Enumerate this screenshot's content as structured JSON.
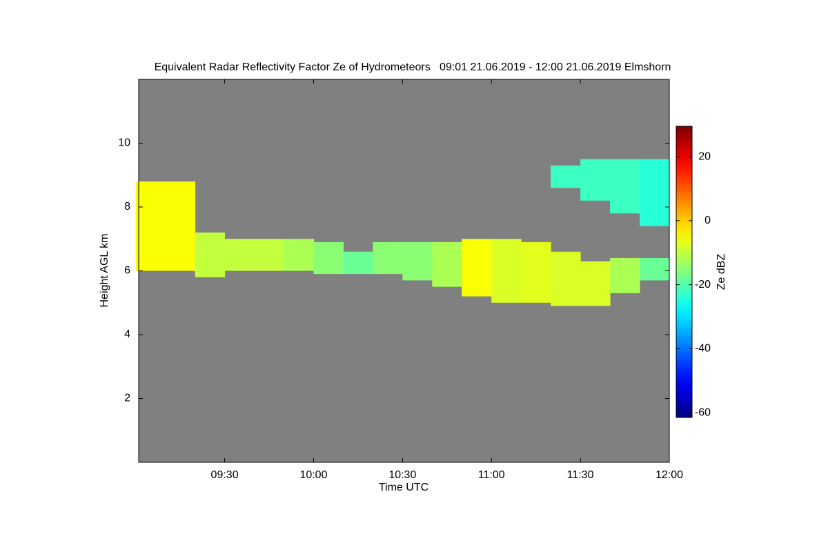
{
  "chart_data": {
    "type": "heatmap",
    "title": "Equivalent Radar Reflectivity Factor Ze of Hydrometeors   09:01 21.06.2019 - 12:00 21.06.2019 Elmshorn",
    "x_label": "Time UTC",
    "y_label": "Height AGL km",
    "colorbar_label": "Ze dBZ",
    "colormap": "jet",
    "background": "#808080",
    "xlim": [
      9.0167,
      12.0
    ],
    "xticks": [
      {
        "value": 9.5,
        "label": "09:30"
      },
      {
        "value": 10.0,
        "label": "10:00"
      },
      {
        "value": 10.5,
        "label": "10:30"
      },
      {
        "value": 11.0,
        "label": "11:00"
      },
      {
        "value": 11.5,
        "label": "11:30"
      },
      {
        "value": 12.0,
        "label": "12:00"
      }
    ],
    "ylim": [
      0,
      12
    ],
    "yticks": [
      2,
      4,
      6,
      8,
      10
    ],
    "clim": [
      -61.5,
      29.5
    ],
    "cticks": [
      20,
      0,
      -20,
      -40,
      -60
    ],
    "layers": [
      {
        "x": [
          9.0833,
          9.25,
          9.4167,
          9.5833,
          9.75,
          9.9167,
          10.0833,
          10.25,
          10.4167,
          10.5833,
          10.75,
          10.9167,
          11.0833,
          11.25,
          11.4167,
          11.5833,
          11.75,
          11.9167
        ],
        "top": [
          8.8,
          8.8,
          7.2,
          7.0,
          7.0,
          7.0,
          6.9,
          6.6,
          6.9,
          6.9,
          6.9,
          7.0,
          7.0,
          6.9,
          6.6,
          6.3,
          6.4,
          6.4
        ],
        "base": [
          6.0,
          6.0,
          5.8,
          6.0,
          6.0,
          6.0,
          5.9,
          5.9,
          5.9,
          5.7,
          5.5,
          5.2,
          5.0,
          5.0,
          4.9,
          4.9,
          5.3,
          5.7
        ],
        "values": [
          -5,
          -5,
          -10,
          -10,
          -10,
          -12,
          -15,
          -18,
          -15,
          -15,
          -12,
          -5,
          -8,
          -7,
          -8,
          -8,
          -12,
          -18
        ]
      },
      {
        "x": [
          11.4167,
          11.5833,
          11.75,
          11.9167
        ],
        "top": [
          9.3,
          9.5,
          9.5,
          9.5
        ],
        "base": [
          8.6,
          8.2,
          7.8,
          7.4
        ],
        "values": [
          -22,
          -22,
          -22,
          -24
        ]
      }
    ]
  }
}
